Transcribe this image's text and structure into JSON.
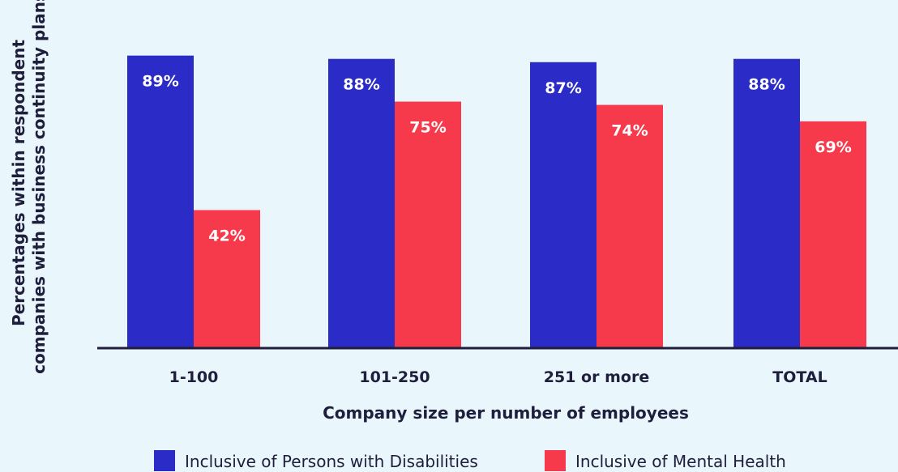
{
  "chart_data": {
    "type": "bar",
    "title": "",
    "xlabel": "Company size per number of employees",
    "ylabel": "Percentages within respondent companies with business continuity plans",
    "categories": [
      "1-100",
      "101-250",
      "251 or more",
      "TOTAL"
    ],
    "series": [
      {
        "name": "Inclusive of Persons with Disabilities",
        "values": [
          89,
          88,
          87,
          88
        ],
        "labels": [
          "89%",
          "88%",
          "87%",
          "88%"
        ],
        "color": "#2b2bc7"
      },
      {
        "name": "Inclusive of Mental Health",
        "values": [
          42,
          75,
          74,
          69
        ],
        "labels": [
          "42%",
          "75%",
          "74%",
          "69%"
        ],
        "color": "#f73a4b"
      }
    ],
    "ylim": [
      0,
      100
    ],
    "grid": false,
    "legend": "bottom"
  }
}
